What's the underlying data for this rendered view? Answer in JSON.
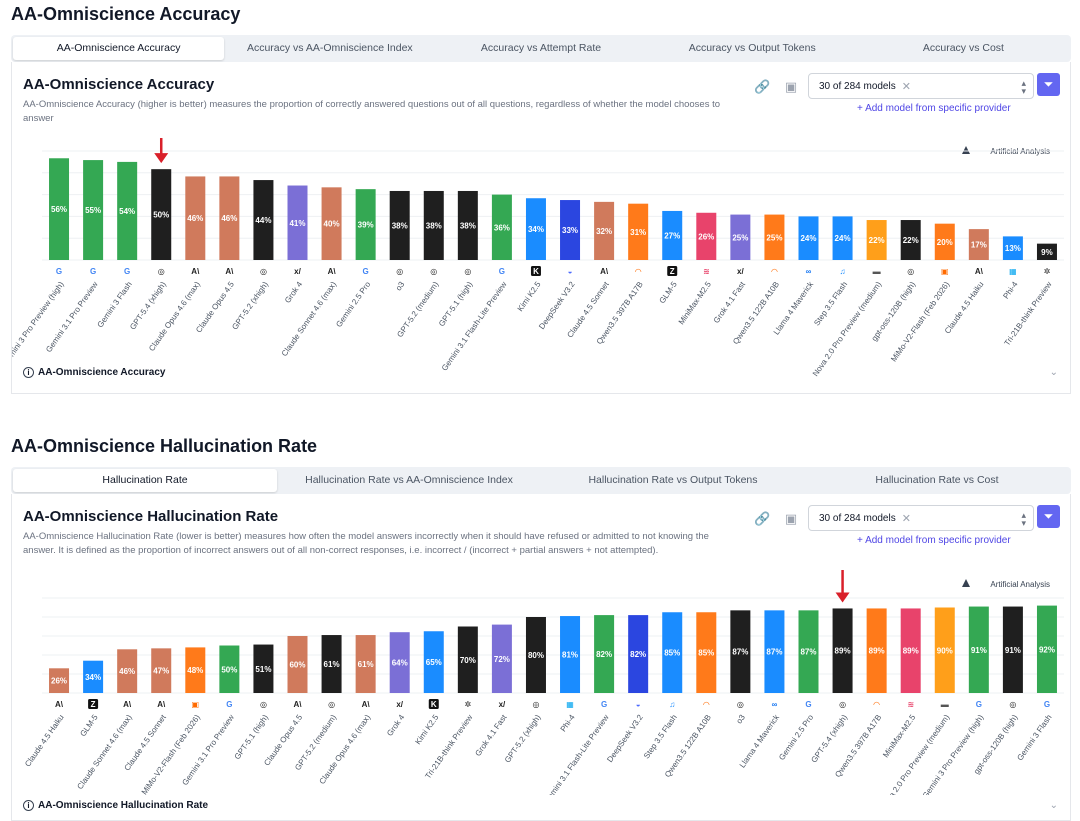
{
  "section1": {
    "heading": "AA-Omniscience Accuracy",
    "tabs": [
      "AA-Omniscience Accuracy",
      "Accuracy vs AA-Omniscience Index",
      "Accuracy vs Attempt Rate",
      "Accuracy vs Output Tokens",
      "Accuracy vs Cost"
    ],
    "panel_title": "AA-Omniscience Accuracy",
    "description": "AA-Omniscience Accuracy (higher is better) measures the proportion of correctly answered questions out of all questions, regardless of whether the model chooses to answer",
    "model_select": "30 of 284 models",
    "add_model": "+ Add model from specific provider",
    "footer": "AA-Omniscience Accuracy",
    "watermark": "Artificial Analysis"
  },
  "section2": {
    "heading": "AA-Omniscience Hallucination Rate",
    "tabs": [
      "Hallucination Rate",
      "Hallucination Rate vs AA-Omniscience Index",
      "Hallucination Rate vs Output Tokens",
      "Hallucination Rate vs Cost"
    ],
    "panel_title": "AA-Omniscience Hallucination Rate",
    "description": "AA-Omniscience Hallucination Rate (lower is better) measures how often the model answers incorrectly when it should have refused or admitted to not knowing the answer. It is defined as the proportion of incorrect answers out of all non-correct responses, i.e. incorrect / (incorrect + partial answers + not attempted).",
    "model_select": "30 of 284 models",
    "add_model": "+ Add model from specific provider",
    "footer": "AA-Omniscience Hallucination Rate",
    "watermark": "Artificial Analysis"
  },
  "colors": {
    "google": "#34a853",
    "openai": "#1f1f1f",
    "anthropic": "#d07a5c",
    "xai": "#7b6fd6",
    "moonshot": "#1a8cff",
    "deepseek": "#2b46e0",
    "alibaba": "#ff7a1a",
    "zai": "#1a8cff",
    "minimax": "#e8436b",
    "meta": "#1a8cff",
    "stepfun": "#1a8cff",
    "amazon": "#ff9f1a",
    "xiaomi": "#ff7a1a",
    "microsoft": "#1a8cff",
    "tii": "#1f1f1f"
  },
  "chart_data": [
    {
      "type": "bar",
      "title": "AA-Omniscience Accuracy",
      "unit": "%",
      "ylim": [
        0,
        60
      ],
      "grid": true,
      "highlight": "GPT-5.4 (xhigh)",
      "categories": [
        "Gemini 3 Pro Preview (high)",
        "Gemini 3.1 Pro Preview",
        "Gemini 3 Flash",
        "GPT-5.4 (xhigh)",
        "Claude Opus 4.6 (max)",
        "Claude Opus 4.5",
        "GPT-5.2 (xhigh)",
        "Grok 4",
        "Claude Sonnet 4.6 (max)",
        "Gemini 2.5 Pro",
        "o3",
        "GPT-5.2 (medium)",
        "GPT-5.1 (high)",
        "Gemini 3.1 Flash-Lite Preview",
        "Kimi K2.5",
        "DeepSeek V3.2",
        "Claude 4.5 Sonnet",
        "Qwen3.5 397B A17B",
        "GLM-5",
        "MiniMax-M2.5",
        "Grok 4.1 Fast",
        "Qwen3.5 122B A10B",
        "Llama 4 Maverick",
        "Step 3.5 Flash",
        "Nova 2.0 Pro Preview (medium)",
        "gpt-oss-120B (high)",
        "MiMo-V2-Flash (Feb 2026)",
        "Claude 4.5 Haiku",
        "Phi-4",
        "Tri-21B-think Preview"
      ],
      "providers": [
        "google",
        "google",
        "google",
        "openai",
        "anthropic",
        "anthropic",
        "openai",
        "xai",
        "anthropic",
        "google",
        "openai",
        "openai",
        "openai",
        "google",
        "moonshot",
        "deepseek",
        "anthropic",
        "alibaba",
        "zai",
        "minimax",
        "xai",
        "alibaba",
        "meta",
        "stepfun",
        "amazon",
        "openai",
        "xiaomi",
        "anthropic",
        "microsoft",
        "tii"
      ],
      "values": [
        56,
        55,
        54,
        50,
        46,
        46,
        44,
        41,
        40,
        39,
        38,
        38,
        38,
        36,
        34,
        33,
        32,
        31,
        27,
        26,
        25,
        25,
        24,
        24,
        22,
        22,
        20,
        17,
        13,
        9
      ]
    },
    {
      "type": "bar",
      "title": "AA-Omniscience Hallucination Rate",
      "unit": "%",
      "ylim": [
        0,
        100
      ],
      "grid": true,
      "highlight": "GPT-5.4 (xhigh)",
      "categories": [
        "Claude 4.5 Haiku",
        "GLM-5",
        "Claude Sonnet 4.6 (max)",
        "Claude 4.5 Sonnet",
        "MiMo-V2-Flash (Feb 2026)",
        "Gemini 3.1 Pro Preview",
        "GPT-5.1 (high)",
        "Claude Opus 4.5",
        "GPT-5.2 (medium)",
        "Claude Opus 4.6 (max)",
        "Grok 4",
        "Kimi K2.5",
        "Tri-21B-think Preview",
        "Grok 4.1 Fast",
        "GPT-5.2 (xhigh)",
        "Phi-4",
        "Gemini 3.1 Flash-Lite Preview",
        "DeepSeek V3.2",
        "Step 3.5 Flash",
        "Qwen3.5 122B A10B",
        "o3",
        "Llama 4 Maverick",
        "Gemini 2.5 Pro",
        "GPT-5.4 (xhigh)",
        "Qwen3.5 397B A17B",
        "MiniMax-M2.5",
        "Nova 2.0 Pro Preview (medium)",
        "Gemini 3 Pro Preview (high)",
        "gpt-oss-120B (high)",
        "Gemini 3 Flash"
      ],
      "providers": [
        "anthropic",
        "zai",
        "anthropic",
        "anthropic",
        "xiaomi",
        "google",
        "openai",
        "anthropic",
        "openai",
        "anthropic",
        "xai",
        "moonshot",
        "tii",
        "xai",
        "openai",
        "microsoft",
        "google",
        "deepseek",
        "stepfun",
        "alibaba",
        "openai",
        "meta",
        "google",
        "openai",
        "alibaba",
        "minimax",
        "amazon",
        "google",
        "openai",
        "google"
      ],
      "values": [
        26,
        34,
        46,
        47,
        48,
        50,
        51,
        60,
        61,
        61,
        64,
        65,
        70,
        72,
        80,
        81,
        82,
        82,
        85,
        85,
        87,
        87,
        87,
        89,
        89,
        89,
        90,
        91,
        91,
        92
      ]
    }
  ]
}
